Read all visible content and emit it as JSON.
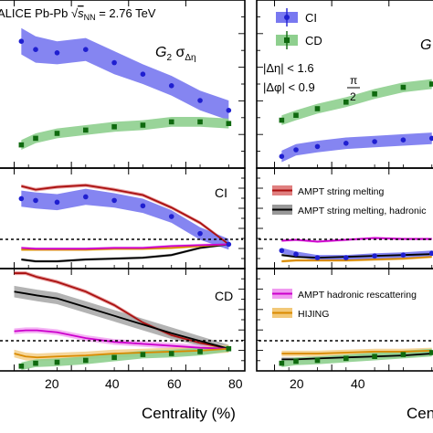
{
  "header": {
    "experiment_prefix": "ALICE Pb-Pb ",
    "energy_sub": "NN",
    "energy_value": " = 2.76 TeV",
    "observable_left": "G",
    "observable_left_sub": "2",
    "observable_left_sigma": " σ",
    "observable_left_sigma_sub": "Δη",
    "observable_right": "G",
    "cut_eta": "|Δη| < 1.6",
    "cut_phi": "|Δφ| < 0.9",
    "cut_phi_num": "π",
    "cut_phi_den": "2"
  },
  "legend_main": {
    "ci_label": "CI",
    "cd_label": "CD"
  },
  "panel_labels": {
    "ci": "CI",
    "cd": "CD"
  },
  "legend_models": {
    "ampt_sm": "AMPT string melting",
    "ampt_sm_hr": "AMPT string melting, hadronic",
    "ampt_hr": "AMPT hadronic rescattering",
    "hijing": "HIJING"
  },
  "x_axis": {
    "title": "Centrality (%)",
    "title_right": "Cen",
    "ticks": [
      "20",
      "40",
      "60",
      "80"
    ],
    "ticks_right": [
      "20",
      "40"
    ]
  },
  "colors": {
    "ci": "#1f1fd0",
    "ci_band": "#7878f0",
    "cd": "#0f6a0f",
    "cd_band": "#8ecf8e",
    "ampt_sm": "#aa1010",
    "ampt_sm_band": "#e08080",
    "ampt_sm_hr": "#000000",
    "ampt_sm_hr_band": "#999999",
    "ampt_hr": "#cc00cc",
    "ampt_hr_band": "#f09af0",
    "hijing": "#d98a00",
    "hijing_band": "#f2c878"
  },
  "chart_data": [
    {
      "type": "line",
      "panel": "top-left",
      "xlim": [
        -4,
        80
      ],
      "ylim": [
        0,
        1
      ],
      "series": [
        {
          "name": "CI",
          "x": [
            2.5,
            7.5,
            15,
            25,
            35,
            45,
            55,
            65,
            75
          ],
          "y": [
            0.76,
            0.71,
            0.69,
            0.71,
            0.63,
            0.56,
            0.49,
            0.4,
            0.34
          ],
          "band": [
            0.08,
            0.08,
            0.07,
            0.07,
            0.07,
            0.06,
            0.06,
            0.06,
            0.06
          ]
        },
        {
          "name": "CD",
          "x": [
            2.5,
            7.5,
            15,
            25,
            35,
            45,
            55,
            65,
            75
          ],
          "y": [
            0.13,
            0.17,
            0.2,
            0.22,
            0.24,
            0.25,
            0.27,
            0.27,
            0.26
          ],
          "band": [
            0.03,
            0.03,
            0.03,
            0.03,
            0.03,
            0.03,
            0.03,
            0.03,
            0.03
          ]
        }
      ]
    },
    {
      "type": "line",
      "panel": "top-right",
      "xlim": [
        -4,
        80
      ],
      "ylim": [
        0,
        1
      ],
      "series": [
        {
          "name": "CI",
          "x": [
            2.5,
            7.5,
            15,
            25,
            35,
            45,
            55
          ],
          "y": [
            0.06,
            0.1,
            0.12,
            0.14,
            0.15,
            0.16,
            0.17
          ],
          "band": [
            0.035,
            0.035,
            0.035,
            0.035,
            0.035,
            0.035,
            0.035
          ]
        },
        {
          "name": "CD",
          "x": [
            2.5,
            7.5,
            15,
            25,
            35,
            45,
            55
          ],
          "y": [
            0.28,
            0.31,
            0.35,
            0.39,
            0.44,
            0.48,
            0.5
          ],
          "band": [
            0.03,
            0.03,
            0.03,
            0.03,
            0.03,
            0.03,
            0.03
          ]
        }
      ]
    },
    {
      "type": "line",
      "panel": "mid-left",
      "xlim": [
        -4,
        80
      ],
      "ylim": [
        0,
        1
      ],
      "series": [
        {
          "name": "CI",
          "x": [
            2.5,
            7.5,
            15,
            25,
            35,
            45,
            55,
            65,
            75
          ],
          "y": [
            0.72,
            0.7,
            0.68,
            0.74,
            0.7,
            0.64,
            0.52,
            0.33,
            0.21
          ],
          "band": [
            0.09,
            0.09,
            0.09,
            0.09,
            0.08,
            0.08,
            0.07,
            0.07,
            0.06
          ]
        },
        {
          "x": [
            2.5,
            7.5,
            15,
            25,
            35,
            45,
            55,
            65,
            75
          ],
          "y": [
            0.86,
            0.82,
            0.85,
            0.87,
            0.82,
            0.76,
            0.62,
            0.45,
            0.21
          ],
          "band": [
            0.02,
            0.02,
            0.02,
            0.02,
            0.02,
            0.02,
            0.02,
            0.02,
            0.02
          ]
        },
        {
          "x": [
            2.5,
            7.5,
            15,
            25,
            35,
            45,
            55,
            65,
            75
          ],
          "y": [
            0.04,
            0.02,
            0.02,
            0.04,
            0.05,
            0.06,
            0.09,
            0.17,
            0.21
          ],
          "band": [
            0.015,
            0.015,
            0.015,
            0.015,
            0.015,
            0.015,
            0.015,
            0.015,
            0.015
          ]
        },
        {
          "x": [
            2.5,
            7.5,
            15,
            25,
            35,
            45,
            55,
            65,
            75
          ],
          "y": [
            0.15,
            0.15,
            0.15,
            0.15,
            0.16,
            0.16,
            0.17,
            0.19,
            0.21
          ],
          "band": [
            0.015,
            0.015,
            0.015,
            0.015,
            0.015,
            0.015,
            0.015,
            0.015,
            0.015
          ]
        },
        {
          "x": [
            2.5,
            7.5,
            15,
            25,
            35,
            45,
            55,
            65,
            75
          ],
          "y": [
            0.17,
            0.16,
            0.16,
            0.16,
            0.17,
            0.17,
            0.19,
            0.2,
            0.21
          ],
          "band": [
            0.015,
            0.015,
            0.015,
            0.015,
            0.015,
            0.015,
            0.015,
            0.015,
            0.015
          ]
        }
      ],
      "reference_y": 0.21
    },
    {
      "type": "line",
      "panel": "mid-right",
      "xlim": [
        -4,
        80
      ],
      "ylim": [
        0,
        1
      ],
      "series": [
        {
          "x": [
            2.5,
            7.5,
            15,
            25,
            35,
            45,
            55
          ],
          "y": [
            0.14,
            0.1,
            0.06,
            0.06,
            0.08,
            0.09,
            0.11
          ],
          "band": [
            0.03,
            0.03,
            0.03,
            0.03,
            0.03,
            0.03,
            0.03
          ]
        },
        {
          "x": [
            2.5,
            7.5,
            15,
            25,
            35,
            45,
            55
          ],
          "y": [
            0.09,
            0.07,
            0.06,
            0.07,
            0.08,
            0.09,
            0.1
          ],
          "band": [
            0.015,
            0.015,
            0.015,
            0.015,
            0.015,
            0.015,
            0.015
          ]
        },
        {
          "x": [
            2.5,
            7.5,
            15,
            25,
            35,
            45,
            55
          ],
          "y": [
            0.25,
            0.26,
            0.24,
            0.26,
            0.28,
            0.27,
            0.27
          ],
          "band": [
            0.015,
            0.015,
            0.015,
            0.015,
            0.015,
            0.015,
            0.015
          ]
        },
        {
          "x": [
            2.5,
            7.5,
            15,
            25,
            35,
            45,
            55
          ],
          "y": [
            0.02,
            0.03,
            0.03,
            0.03,
            0.04,
            0.05,
            0.07
          ],
          "band": [
            0.015,
            0.015,
            0.015,
            0.015,
            0.015,
            0.015,
            0.015
          ]
        }
      ],
      "reference_y": 0.2
    },
    {
      "type": "line",
      "panel": "bottom-left",
      "xlim": [
        -4,
        80
      ],
      "ylim": [
        0,
        1
      ],
      "series": [
        {
          "name": "CD",
          "x": [
            2.5,
            7.5,
            15,
            25,
            35,
            45,
            55,
            65,
            75
          ],
          "y": [
            0.03,
            0.06,
            0.07,
            0.09,
            0.12,
            0.15,
            0.16,
            0.18,
            0.21
          ],
          "band": [
            0.04,
            0.04,
            0.04,
            0.04,
            0.04,
            0.04,
            0.04,
            0.04,
            0.03
          ]
        },
        {
          "x": [
            0,
            4,
            8,
            15,
            25,
            35,
            45,
            55,
            65,
            75
          ],
          "y": [
            0.99,
            0.99,
            0.95,
            0.9,
            0.8,
            0.66,
            0.48,
            0.35,
            0.27,
            0.21
          ],
          "band": [
            0.02,
            0.02,
            0.02,
            0.02,
            0.02,
            0.02,
            0.02,
            0.02,
            0.02,
            0.02
          ]
        },
        {
          "x": [
            0,
            4,
            8,
            15,
            25,
            35,
            45,
            55,
            65,
            75
          ],
          "y": [
            0.8,
            0.78,
            0.76,
            0.73,
            0.64,
            0.55,
            0.46,
            0.37,
            0.29,
            0.21
          ],
          "band": [
            0.06,
            0.06,
            0.06,
            0.06,
            0.06,
            0.06,
            0.06,
            0.06,
            0.05,
            0.04
          ]
        },
        {
          "x": [
            0,
            4,
            8,
            15,
            25,
            35,
            45,
            55,
            65,
            75
          ],
          "y": [
            0.39,
            0.4,
            0.4,
            0.38,
            0.32,
            0.28,
            0.26,
            0.24,
            0.22,
            0.21
          ],
          "band": [
            0.03,
            0.03,
            0.03,
            0.03,
            0.03,
            0.03,
            0.03,
            0.03,
            0.03,
            0.03
          ]
        },
        {
          "x": [
            0,
            4,
            8,
            15,
            25,
            35,
            45,
            55,
            65,
            75
          ],
          "y": [
            0.16,
            0.13,
            0.12,
            0.13,
            0.14,
            0.16,
            0.17,
            0.18,
            0.19,
            0.21
          ],
          "band": [
            0.04,
            0.04,
            0.04,
            0.04,
            0.04,
            0.04,
            0.04,
            0.04,
            0.04,
            0.04
          ]
        }
      ],
      "reference_y": 0.21
    },
    {
      "type": "line",
      "panel": "bottom-right",
      "xlim": [
        -4,
        80
      ],
      "ylim": [
        0,
        1
      ],
      "series": [
        {
          "name": "CD",
          "x": [
            2.5,
            7.5,
            15,
            25,
            35,
            45,
            55
          ],
          "y": [
            0.06,
            0.08,
            0.09,
            0.11,
            0.13,
            0.15,
            0.17
          ],
          "band": [
            0.04,
            0.04,
            0.04,
            0.04,
            0.04,
            0.04,
            0.04
          ]
        },
        {
          "x": [
            2.5,
            7.5,
            15,
            25,
            35,
            45,
            55
          ],
          "y": [
            0.16,
            0.16,
            0.16,
            0.17,
            0.18,
            0.18,
            0.19
          ],
          "band": [
            0.03,
            0.03,
            0.03,
            0.03,
            0.03,
            0.03,
            0.03
          ]
        },
        {
          "x": [
            2.5,
            7.5,
            15,
            25,
            35,
            45,
            55
          ],
          "y": [
            0.1,
            0.1,
            0.11,
            0.12,
            0.13,
            0.14,
            0.16
          ],
          "band": [
            0.02,
            0.02,
            0.02,
            0.02,
            0.02,
            0.02,
            0.02
          ]
        }
      ],
      "reference_y": 0.2
    }
  ]
}
